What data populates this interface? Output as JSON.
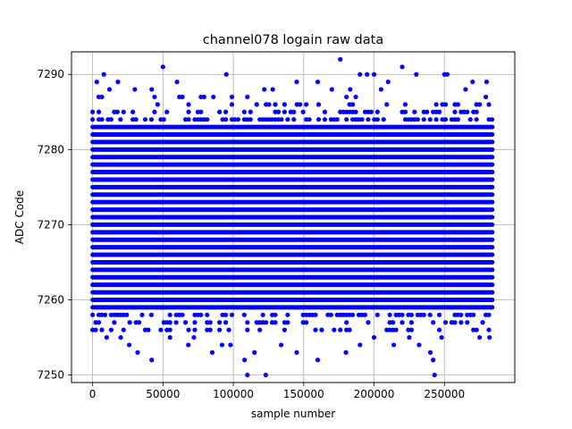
{
  "chart_data": {
    "type": "scatter",
    "title": "channel078 logain raw data",
    "xlabel": "sample number",
    "ylabel": "ADC Code",
    "xlim": [
      -15000,
      300000
    ],
    "ylim": [
      7249,
      7293
    ],
    "x_ticks": [
      0,
      50000,
      100000,
      150000,
      200000,
      250000
    ],
    "y_ticks": [
      7250,
      7260,
      7270,
      7280,
      7290
    ],
    "grid": true,
    "marker_color": "#0000ff",
    "x_range": [
      0,
      284000
    ],
    "dense_band": [
      7259,
      7283
    ],
    "series": [
      {
        "values": [
          [
            3000,
            7289
          ],
          [
            8000,
            7290
          ],
          [
            18000,
            7289
          ],
          [
            50000,
            7291
          ],
          [
            60000,
            7289
          ],
          [
            95000,
            7290
          ],
          [
            122000,
            7288
          ],
          [
            128000,
            7288
          ],
          [
            145000,
            7289
          ],
          [
            160000,
            7289
          ],
          [
            176000,
            7292
          ],
          [
            190000,
            7290
          ],
          [
            195000,
            7290
          ],
          [
            200000,
            7290
          ],
          [
            210000,
            7289
          ],
          [
            220000,
            7291
          ],
          [
            230000,
            7290
          ],
          [
            250000,
            7290
          ],
          [
            252000,
            7290
          ],
          [
            270000,
            7289
          ],
          [
            280000,
            7289
          ],
          [
            12000,
            7288
          ],
          [
            30000,
            7288
          ],
          [
            42000,
            7288
          ],
          [
            170000,
            7288
          ],
          [
            183000,
            7288
          ],
          [
            205000,
            7288
          ],
          [
            265000,
            7288
          ],
          [
            10000,
            7255
          ],
          [
            20000,
            7255
          ],
          [
            32000,
            7253
          ],
          [
            42000,
            7252
          ],
          [
            55000,
            7255
          ],
          [
            72000,
            7255
          ],
          [
            85000,
            7253
          ],
          [
            92000,
            7254
          ],
          [
            98000,
            7254
          ],
          [
            108000,
            7252
          ],
          [
            110000,
            7250
          ],
          [
            115000,
            7253
          ],
          [
            123000,
            7250
          ],
          [
            145000,
            7253
          ],
          [
            160000,
            7252
          ],
          [
            180000,
            7253
          ],
          [
            190000,
            7254
          ],
          [
            200000,
            7255
          ],
          [
            225000,
            7255
          ],
          [
            232000,
            7254
          ],
          [
            240000,
            7253
          ],
          [
            242000,
            7252
          ],
          [
            243000,
            7250
          ],
          [
            248000,
            7255
          ],
          [
            275000,
            7255
          ],
          [
            282000,
            7255
          ],
          [
            26000,
            7254
          ],
          [
            68000,
            7254
          ],
          [
            134000,
            7254
          ],
          [
            214000,
            7254
          ]
        ]
      }
    ]
  }
}
